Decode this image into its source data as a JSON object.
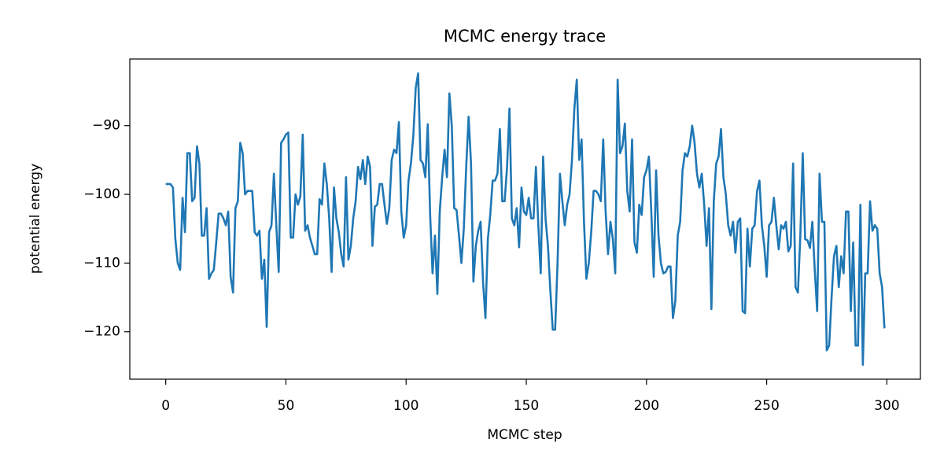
{
  "chart_data": {
    "type": "line",
    "title": "MCMC energy trace",
    "x_label": "MCMC step",
    "y_label": "potential energy",
    "color": "#1f77b4",
    "xlim": [
      -14.95,
      313.95
    ],
    "xticks": [
      0,
      50,
      100,
      150,
      200,
      250,
      300
    ],
    "ylim": [
      -126.9,
      -80.3
    ],
    "yticks": [
      {
        "value": -120,
        "label": "−120"
      },
      {
        "value": -110,
        "label": "−110"
      },
      {
        "value": -100,
        "label": "−100"
      },
      {
        "value": -90,
        "label": "−90"
      }
    ],
    "x": [
      0,
      1,
      2,
      3,
      4,
      5,
      6,
      7,
      8,
      9,
      10,
      11,
      12,
      13,
      14,
      15,
      16,
      17,
      18,
      19,
      20,
      21,
      22,
      23,
      24,
      25,
      26,
      27,
      28,
      29,
      30,
      31,
      32,
      33,
      34,
      35,
      36,
      37,
      38,
      39,
      40,
      41,
      42,
      43,
      44,
      45,
      46,
      47,
      48,
      49,
      50,
      51,
      52,
      53,
      54,
      55,
      56,
      57,
      58,
      59,
      60,
      61,
      62,
      63,
      64,
      65,
      66,
      67,
      68,
      69,
      70,
      71,
      72,
      73,
      74,
      75,
      76,
      77,
      78,
      79,
      80,
      81,
      82,
      83,
      84,
      85,
      86,
      87,
      88,
      89,
      90,
      91,
      92,
      93,
      94,
      95,
      96,
      97,
      98,
      99,
      100,
      101,
      102,
      103,
      104,
      105,
      106,
      107,
      108,
      109,
      110,
      111,
      112,
      113,
      114,
      115,
      116,
      117,
      118,
      119,
      120,
      121,
      122,
      123,
      124,
      125,
      126,
      127,
      128,
      129,
      130,
      131,
      132,
      133,
      134,
      135,
      136,
      137,
      138,
      139,
      140,
      141,
      142,
      143,
      144,
      145,
      146,
      147,
      148,
      149,
      150,
      151,
      152,
      153,
      154,
      155,
      156,
      157,
      158,
      159,
      160,
      161,
      162,
      163,
      164,
      165,
      166,
      167,
      168,
      169,
      170,
      171,
      172,
      173,
      174,
      175,
      176,
      177,
      178,
      179,
      180,
      181,
      182,
      183,
      184,
      185,
      186,
      187,
      188,
      189,
      190,
      191,
      192,
      193,
      194,
      195,
      196,
      197,
      198,
      199,
      200,
      201,
      202,
      203,
      204,
      205,
      206,
      207,
      208,
      209,
      210,
      211,
      212,
      213,
      214,
      215,
      216,
      217,
      218,
      219,
      220,
      221,
      222,
      223,
      224,
      225,
      226,
      227,
      228,
      229,
      230,
      231,
      232,
      233,
      234,
      235,
      236,
      237,
      238,
      239,
      240,
      241,
      242,
      243,
      244,
      245,
      246,
      247,
      248,
      249,
      250,
      251,
      252,
      253,
      254,
      255,
      256,
      257,
      258,
      259,
      260,
      261,
      262,
      263,
      264,
      265,
      266,
      267,
      268,
      269,
      270,
      271,
      272,
      273,
      274,
      275,
      276,
      277,
      278,
      279,
      280,
      281,
      282,
      283,
      284,
      285,
      286,
      287,
      288,
      289,
      290,
      291,
      292,
      293,
      294,
      295,
      296,
      297,
      298,
      299
    ],
    "values": [
      -98.5,
      -98.5,
      -98.5,
      -99,
      -106.5,
      -110,
      -111,
      -100.5,
      -105.5,
      -94,
      -94,
      -101,
      -100.5,
      -93,
      -95.5,
      -106,
      -106,
      -102,
      -112.3,
      -111.5,
      -111,
      -107,
      -102.8,
      -102.8,
      -103.5,
      -104.5,
      -102.5,
      -112,
      -114.3,
      -102,
      -101,
      -92.5,
      -94,
      -100,
      -99.5,
      -99.5,
      -99.5,
      -105.5,
      -106,
      -105.3,
      -112.3,
      -109.5,
      -119.3,
      -105.5,
      -104.5,
      -97,
      -104.5,
      -111.3,
      -92.5,
      -92,
      -91.3,
      -91,
      -106.3,
      -106.3,
      -100,
      -101.5,
      -100.3,
      -91.3,
      -105.3,
      -104.5,
      -106.3,
      -107.5,
      -108.7,
      -108.7,
      -100.7,
      -101.5,
      -95.5,
      -98.5,
      -103.5,
      -111.3,
      -99,
      -103.5,
      -105.5,
      -108.7,
      -110.5,
      -97.5,
      -109.5,
      -107.5,
      -103.5,
      -101,
      -96,
      -97.8,
      -95,
      -98.5,
      -94.5,
      -96,
      -107.5,
      -101.8,
      -101.5,
      -98.5,
      -98.5,
      -101.5,
      -104.3,
      -102,
      -95,
      -93.5,
      -94,
      -89.5,
      -102.5,
      -106.3,
      -104.5,
      -98,
      -95.5,
      -91.5,
      -84.5,
      -82.4,
      -95,
      -95.5,
      -97.5,
      -89.8,
      -103,
      -111.5,
      -106,
      -114.5,
      -102.5,
      -97.5,
      -93.5,
      -97.5,
      -85.3,
      -90,
      -102,
      -102.3,
      -106,
      -110,
      -105,
      -96,
      -88.7,
      -95.5,
      -112.7,
      -107.5,
      -105.3,
      -104,
      -112.7,
      -118,
      -106.5,
      -103,
      -98,
      -98,
      -97,
      -90.5,
      -101,
      -101,
      -96,
      -87.5,
      -103.5,
      -104.5,
      -102,
      -107.7,
      -99,
      -102.5,
      -103,
      -100.5,
      -103.5,
      -103.5,
      -96,
      -104.5,
      -111.5,
      -94.5,
      -103.5,
      -107.5,
      -114,
      -119.7,
      -119.7,
      -110,
      -97,
      -101,
      -104.5,
      -101.5,
      -100,
      -95,
      -87.5,
      -83.3,
      -95,
      -92,
      -104,
      -112.3,
      -110,
      -105.5,
      -99.5,
      -99.5,
      -100,
      -101,
      -92,
      -102.5,
      -108.7,
      -104,
      -106.5,
      -111.5,
      -83.3,
      -94,
      -93,
      -89.7,
      -99.5,
      -102.5,
      -92,
      -107,
      -108.5,
      -101.5,
      -103,
      -97.5,
      -96.5,
      -94.5,
      -102.5,
      -112,
      -96.5,
      -106,
      -110,
      -111.5,
      -111.3,
      -110.5,
      -110.5,
      -118,
      -115.5,
      -106,
      -104,
      -96.5,
      -94,
      -94.5,
      -93,
      -90,
      -92.5,
      -97,
      -99,
      -97,
      -101.5,
      -107.5,
      -102,
      -116.7,
      -101,
      -95.5,
      -94.5,
      -90.5,
      -97.5,
      -100,
      -104.5,
      -106,
      -104,
      -108.5,
      -104,
      -103.5,
      -117,
      -117.3,
      -105,
      -110.5,
      -105,
      -104.5,
      -99.5,
      -98,
      -104.5,
      -107.5,
      -112,
      -104.5,
      -104,
      -100.5,
      -104.5,
      -108,
      -104.5,
      -105,
      -104,
      -108.3,
      -107.5,
      -95.5,
      -113.5,
      -114.3,
      -106,
      -94,
      -106.5,
      -106.7,
      -107.8,
      -104,
      -111,
      -117,
      -97,
      -104,
      -104,
      -122.7,
      -122,
      -115,
      -109,
      -107.5,
      -113.5,
      -109,
      -111.5,
      -102.5,
      -102.5,
      -117,
      -107,
      -122,
      -122,
      -101.5,
      -124.8,
      -111.5,
      -111.5,
      -101,
      -105.3,
      -104.5,
      -105,
      -111.5,
      -113.5,
      -119.5
    ]
  }
}
